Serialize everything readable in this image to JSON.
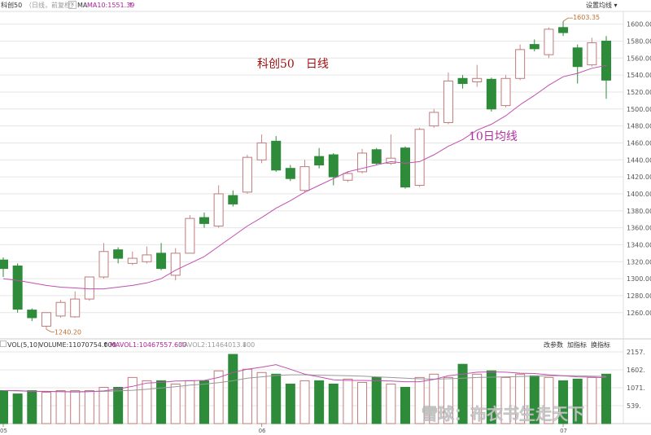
{
  "header": {
    "symbol": "科创50",
    "mode": "（日线，前复权）",
    "ma_label": "MA",
    "ma10": "MA10:1551.39",
    "ma_arrow": "↑",
    "settings": "设置均线 ▾",
    "icon_x": "close-icon",
    "icon_box": "settings-box-icon"
  },
  "annotations": {
    "title": "科创50　日线",
    "ma_note": "10日均线",
    "high_label": "1603.35",
    "low_label": "1240.20"
  },
  "volume_header": {
    "vol": "VOL(5,10)",
    "volume": "VOLUME:11070754.000",
    "vol_arrow": "↑",
    "mavol1": "MAVOL1:10467557.600",
    "mavol2": "MAVOL2:11464013.800",
    "mavol2_arrow": "↓",
    "btn_params": "改参数",
    "btn_add": "加指标",
    "btn_switch": "换指标"
  },
  "watermark": "雪球：布衣书生走天下",
  "colors": {
    "up": "#b03a3a",
    "down": "#2e8b3a",
    "ma": "#c050b0",
    "ma2": "#999999",
    "grid": "#e6e6e6",
    "annot_red": "#a01010",
    "annot_purple": "#b030a0",
    "label_orange": "#c07030"
  },
  "chart_data": {
    "type": "candlestick",
    "price_axis": {
      "ylim": [
        1230,
        1615
      ],
      "ticks": [
        1260,
        1280,
        1300,
        1320,
        1340,
        1360,
        1380,
        1400,
        1420,
        1440,
        1460,
        1480,
        1500,
        1520,
        1540,
        1560,
        1580,
        1600
      ]
    },
    "volume_axis": {
      "ylim": [
        0,
        2200000
      ],
      "ticks": [
        "539.",
        "1071.",
        "1602.",
        "2157."
      ]
    },
    "x_ticks": [
      {
        "index": 0,
        "label": "05"
      },
      {
        "index": 18,
        "label": "06"
      },
      {
        "index": 39,
        "label": "07"
      }
    ],
    "candles": [
      {
        "o": 1322,
        "h": 1325,
        "c": 1312,
        "l": 1302,
        "v": 1000000
      },
      {
        "o": 1315,
        "h": 1318,
        "c": 1264,
        "l": 1260,
        "v": 900000
      },
      {
        "o": 1263,
        "h": 1265,
        "c": 1254,
        "l": 1250,
        "v": 1000000
      },
      {
        "o": 1244,
        "h": 1259,
        "c": 1260,
        "l": 1240.2,
        "v": 950000
      },
      {
        "o": 1256,
        "h": 1275,
        "c": 1272,
        "l": 1254,
        "v": 1000000
      },
      {
        "o": 1255,
        "h": 1285,
        "c": 1276,
        "l": 1254,
        "v": 1000000
      },
      {
        "o": 1276,
        "h": 1300,
        "c": 1302,
        "l": 1274,
        "v": 1000000
      },
      {
        "o": 1302,
        "h": 1342,
        "c": 1332,
        "l": 1300,
        "v": 1100000
      },
      {
        "o": 1334,
        "h": 1337,
        "c": 1324,
        "l": 1318,
        "v": 1100000
      },
      {
        "o": 1318,
        "h": 1332,
        "c": 1324,
        "l": 1316,
        "v": 1400000
      },
      {
        "o": 1320,
        "h": 1338,
        "c": 1328,
        "l": 1318,
        "v": 1300000
      },
      {
        "o": 1330,
        "h": 1342,
        "c": 1312,
        "l": 1310,
        "v": 1300000
      },
      {
        "o": 1304,
        "h": 1336,
        "c": 1330,
        "l": 1298,
        "v": 1200000
      },
      {
        "o": 1330,
        "h": 1375,
        "c": 1371,
        "l": 1330,
        "v": 1300000
      },
      {
        "o": 1372,
        "h": 1378,
        "c": 1365,
        "l": 1360,
        "v": 1300000
      },
      {
        "o": 1362,
        "h": 1410,
        "c": 1400,
        "l": 1360,
        "v": 1600000
      },
      {
        "o": 1398,
        "h": 1404,
        "c": 1388,
        "l": 1385,
        "v": 2100000
      },
      {
        "o": 1402,
        "h": 1446,
        "c": 1443,
        "l": 1400,
        "v": 1650000
      },
      {
        "o": 1440,
        "h": 1470,
        "c": 1460,
        "l": 1436,
        "v": 1550000
      },
      {
        "o": 1462,
        "h": 1468,
        "c": 1428,
        "l": 1426,
        "v": 1500000
      },
      {
        "o": 1430,
        "h": 1434,
        "c": 1418,
        "l": 1415,
        "v": 1200000
      },
      {
        "o": 1404,
        "h": 1440,
        "c": 1432,
        "l": 1402,
        "v": 1300000
      },
      {
        "o": 1444,
        "h": 1454,
        "c": 1434,
        "l": 1430,
        "v": 1300000
      },
      {
        "o": 1446,
        "h": 1448,
        "c": 1420,
        "l": 1410,
        "v": 1200000
      },
      {
        "o": 1416,
        "h": 1426,
        "c": 1424,
        "l": 1414,
        "v": 1350000
      },
      {
        "o": 1426,
        "h": 1453,
        "c": 1448,
        "l": 1424,
        "v": 1250000
      },
      {
        "o": 1452,
        "h": 1454,
        "c": 1436,
        "l": 1434,
        "v": 1400000
      },
      {
        "o": 1436,
        "h": 1470,
        "c": 1442,
        "l": 1434,
        "v": 1200000
      },
      {
        "o": 1454,
        "h": 1456,
        "c": 1408,
        "l": 1406,
        "v": 1100000
      },
      {
        "o": 1410,
        "h": 1478,
        "c": 1476,
        "l": 1408,
        "v": 1400000
      },
      {
        "o": 1480,
        "h": 1500,
        "c": 1496,
        "l": 1478,
        "v": 1500000
      },
      {
        "o": 1484,
        "h": 1543,
        "c": 1533,
        "l": 1482,
        "v": 1400000
      },
      {
        "o": 1536,
        "h": 1540,
        "c": 1530,
        "l": 1524,
        "v": 1800000
      },
      {
        "o": 1532,
        "h": 1552,
        "c": 1536,
        "l": 1526,
        "v": 1500000
      },
      {
        "o": 1535,
        "h": 1537,
        "c": 1500,
        "l": 1497,
        "v": 1600000
      },
      {
        "o": 1504,
        "h": 1540,
        "c": 1536,
        "l": 1502,
        "v": 1400000
      },
      {
        "o": 1536,
        "h": 1576,
        "c": 1570,
        "l": 1534,
        "v": 1500000
      },
      {
        "o": 1576,
        "h": 1582,
        "c": 1571,
        "l": 1568,
        "v": 1450000
      },
      {
        "o": 1564,
        "h": 1596,
        "c": 1594,
        "l": 1560,
        "v": 1400000
      },
      {
        "o": 1596,
        "h": 1603.35,
        "c": 1590,
        "l": 1586,
        "v": 1300000
      },
      {
        "o": 1572,
        "h": 1576,
        "c": 1550,
        "l": 1530,
        "v": 1350000
      },
      {
        "o": 1552,
        "h": 1584,
        "c": 1578,
        "l": 1550,
        "v": 1400000
      },
      {
        "o": 1580,
        "h": 1586,
        "c": 1534,
        "l": 1512,
        "v": 1500000
      }
    ],
    "ma10": [
      1300,
      1298,
      1295,
      1292,
      1290,
      1289,
      1288,
      1288,
      1290,
      1292,
      1295,
      1300,
      1310,
      1318,
      1326,
      1338,
      1350,
      1362,
      1372,
      1383,
      1392,
      1402,
      1410,
      1418,
      1426,
      1430,
      1434,
      1438,
      1436,
      1438,
      1446,
      1456,
      1464,
      1475,
      1482,
      1492,
      1505,
      1516,
      1528,
      1538,
      1542,
      1548,
      1551.39
    ],
    "mavol1": [
      1000000,
      1000000,
      980000,
      980000,
      970000,
      960000,
      970000,
      990000,
      1050000,
      1130000,
      1230000,
      1250000,
      1290000,
      1300000,
      1310000,
      1400000,
      1550000,
      1650000,
      1710000,
      1790000,
      1650000,
      1500000,
      1420000,
      1330000,
      1310000,
      1310000,
      1300000,
      1290000,
      1270000,
      1270000,
      1340000,
      1450000,
      1500000,
      1560000,
      1570000,
      1560000,
      1530000,
      1520000,
      1480000,
      1450000,
      1420000,
      1410000,
      1390000
    ],
    "mavol2": [
      1000000,
      990000,
      980000,
      975000,
      970000,
      970000,
      975000,
      980000,
      990000,
      1010000,
      1040000,
      1080000,
      1120000,
      1170000,
      1200000,
      1240000,
      1300000,
      1380000,
      1420000,
      1460000,
      1480000,
      1480000,
      1470000,
      1460000,
      1450000,
      1440000,
      1420000,
      1400000,
      1380000,
      1360000,
      1350000,
      1360000,
      1380000,
      1400000,
      1410000,
      1420000,
      1430000,
      1440000,
      1450000,
      1450000,
      1450000,
      1440000,
      1430000
    ]
  }
}
